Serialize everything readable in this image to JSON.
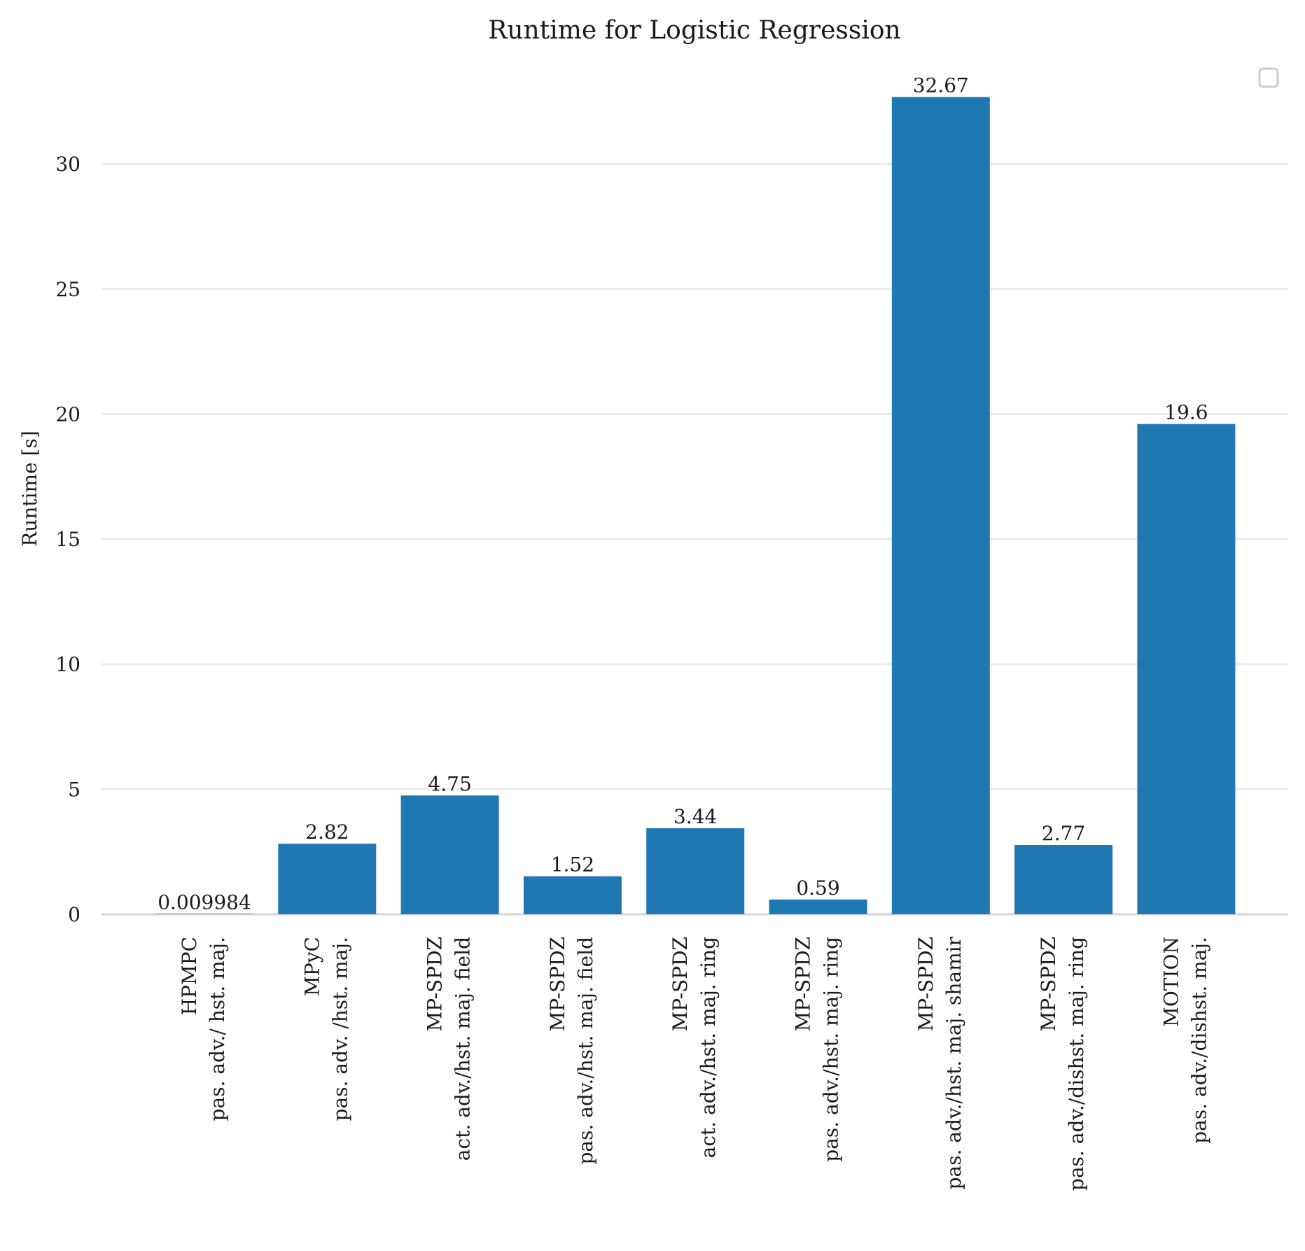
{
  "chart_data": {
    "type": "bar",
    "title": "Runtime for Logistic Regression",
    "xlabel": "",
    "ylabel": "Runtime [s]",
    "ylim": [
      0,
      34
    ],
    "yticks": [
      0,
      5,
      10,
      15,
      20,
      25,
      30
    ],
    "grid": "horizontal",
    "legend": "top-right (empty)",
    "bar_color": "#1f77b4",
    "categories": [
      {
        "line1": "HPMPC",
        "line2": "pas. adv./ hst. maj."
      },
      {
        "line1": "MPyC",
        "line2": "pas. adv. /hst. maj."
      },
      {
        "line1": "MP-SPDZ",
        "line2": "act. adv./hst. maj. field"
      },
      {
        "line1": "MP-SPDZ",
        "line2": "pas. adv./hst. maj. field"
      },
      {
        "line1": "MP-SPDZ",
        "line2": "act. adv./hst. maj. ring"
      },
      {
        "line1": "MP-SPDZ",
        "line2": "pas. adv./hst. maj. ring"
      },
      {
        "line1": "MP-SPDZ",
        "line2": "pas. adv./hst. maj. shamir"
      },
      {
        "line1": "MP-SPDZ",
        "line2": "pas. adv./dishst. maj. ring"
      },
      {
        "line1": "MOTION",
        "line2": "pas. adv./dishst. maj."
      }
    ],
    "values": [
      0.009984,
      2.82,
      4.75,
      1.52,
      3.44,
      0.59,
      32.67,
      2.77,
      19.6
    ],
    "data_labels": [
      "0.009984",
      "2.82",
      "4.75",
      "1.52",
      "3.44",
      "0.59",
      "32.67",
      "2.77",
      "19.6"
    ]
  }
}
